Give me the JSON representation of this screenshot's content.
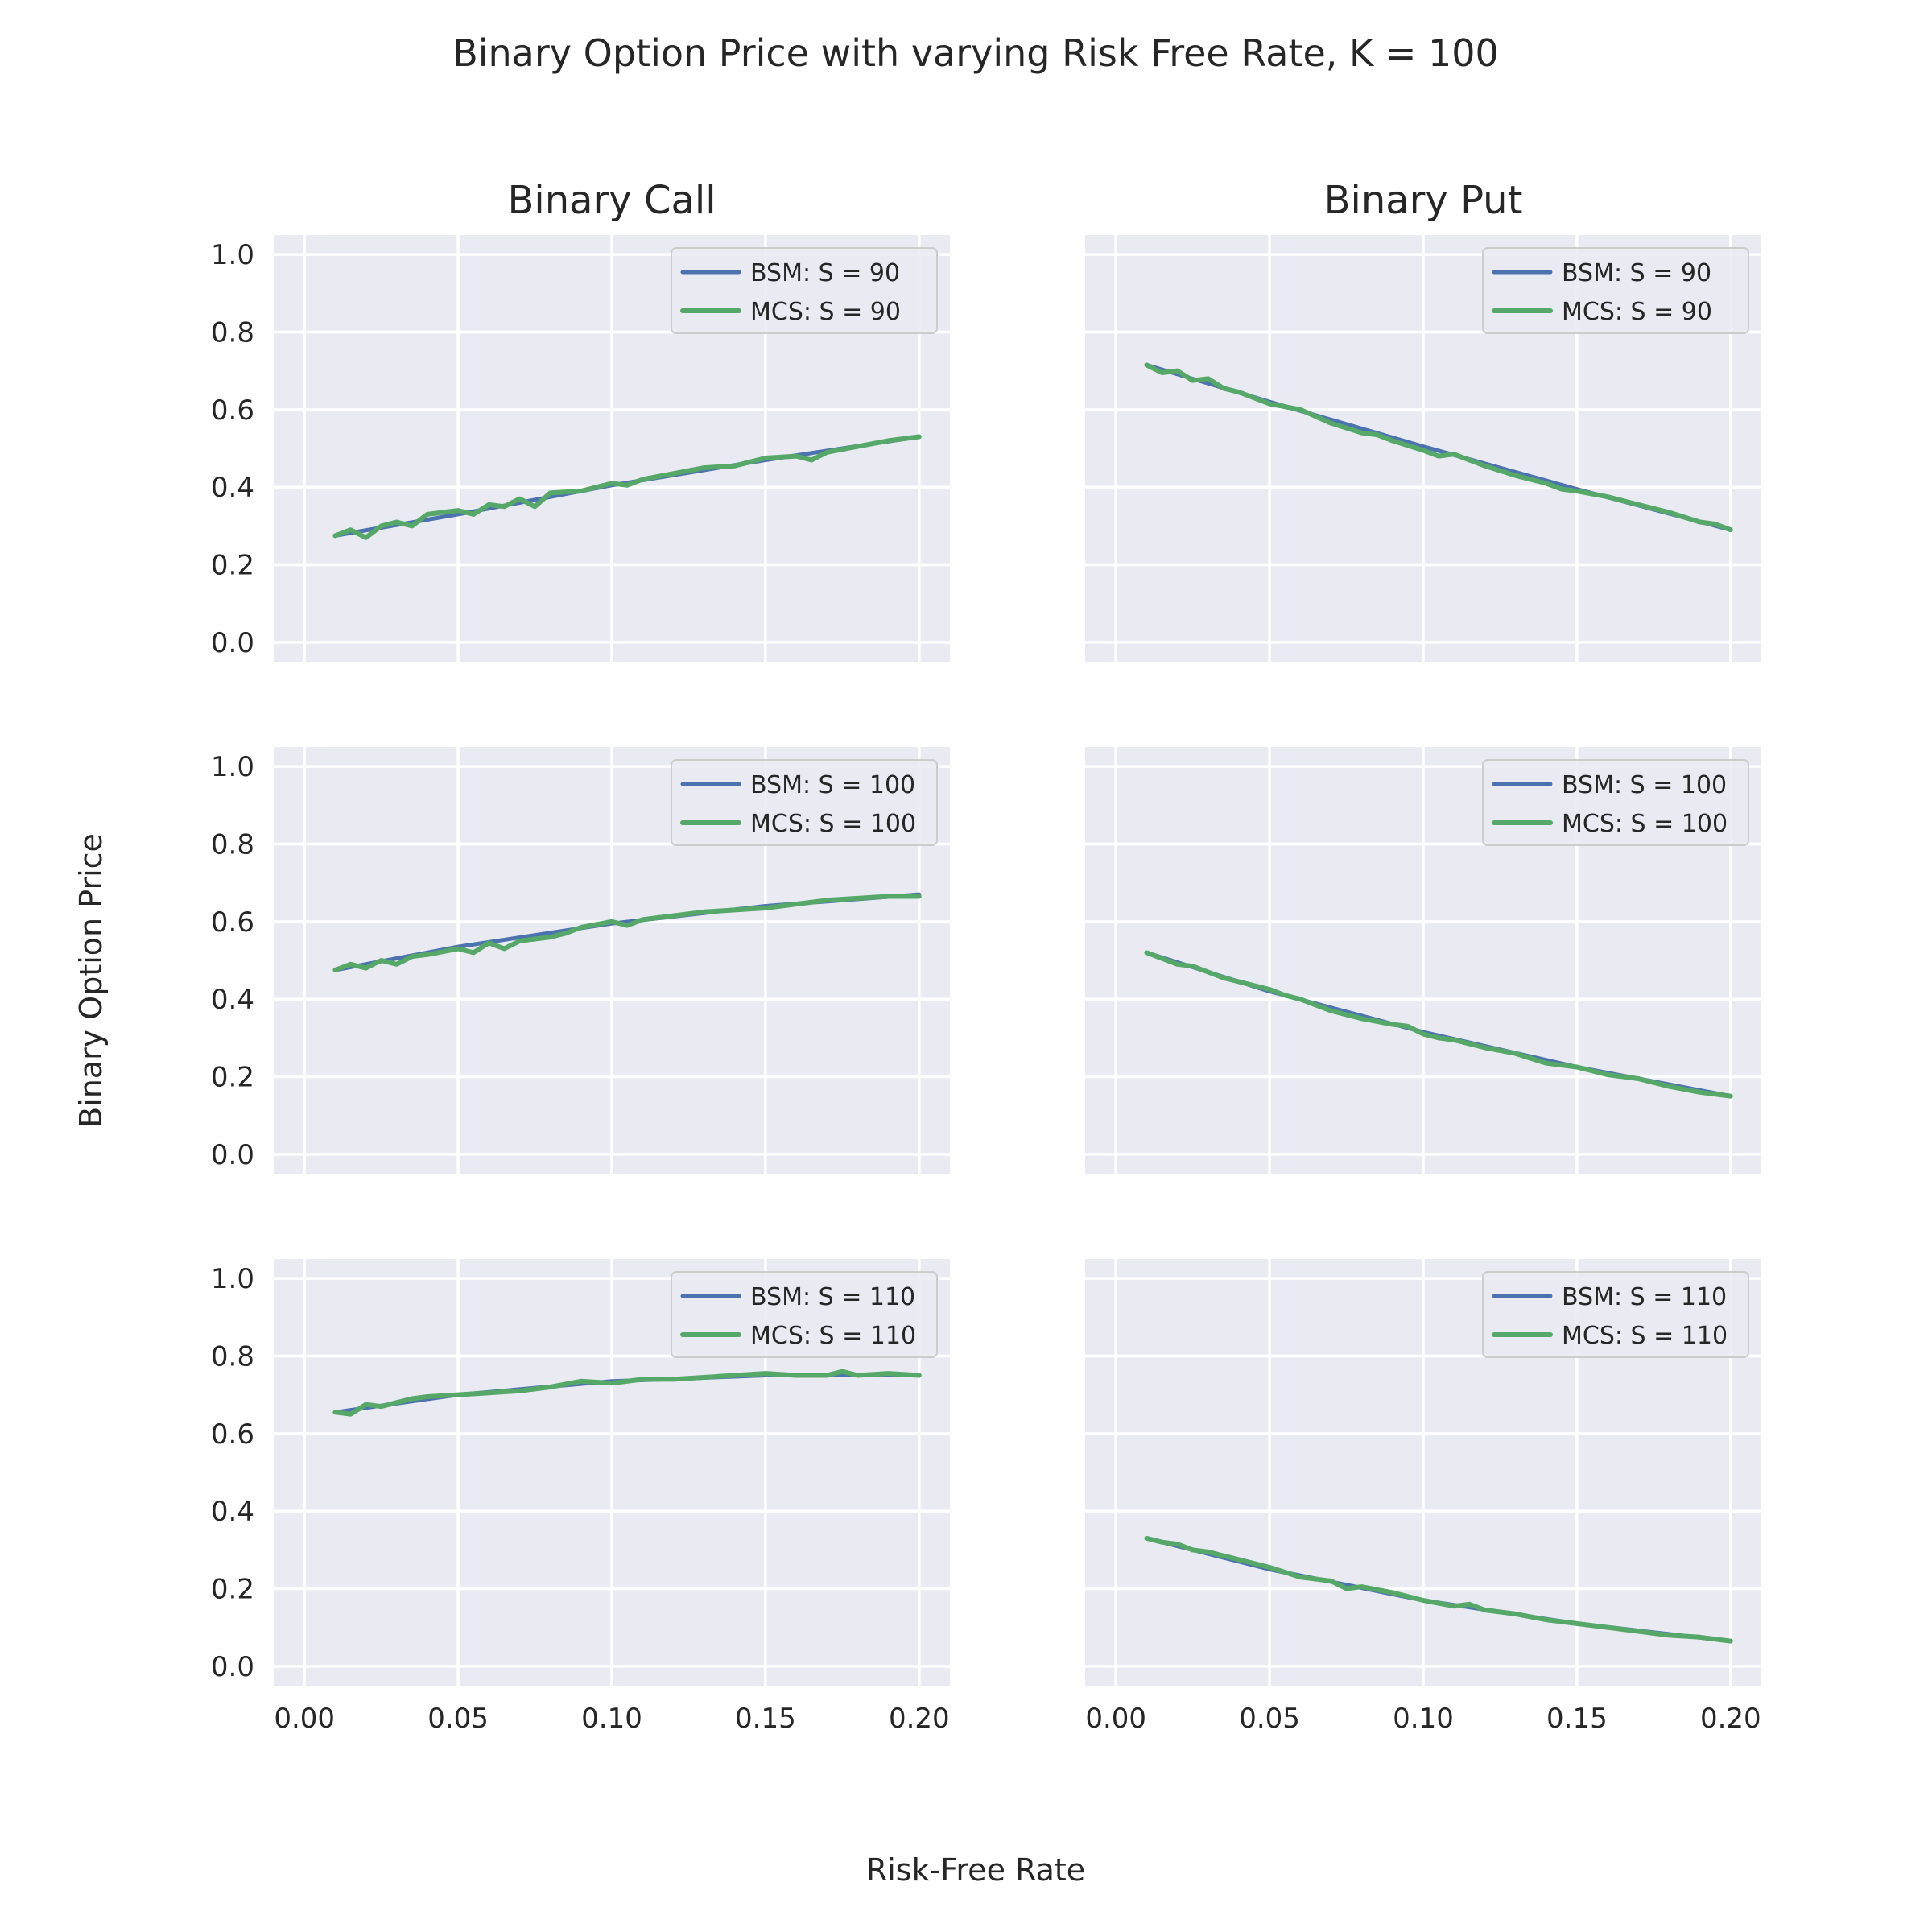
{
  "suptitle": "Binary Option Price with varying Risk Free Rate, K = 100",
  "xlabel": "Risk-Free Rate",
  "ylabel": "Binary Option Price",
  "column_titles": [
    "Binary Call",
    "Binary Put"
  ],
  "colors": {
    "bsm": "#4c72b0",
    "mcs": "#55a868",
    "face": "#eaeaf2"
  },
  "chart_data": [
    {
      "type": "line",
      "title": "Binary Call",
      "row": 0,
      "col": 0,
      "xlim": [
        -0.01,
        0.21
      ],
      "ylim": [
        -0.05,
        1.05
      ],
      "xticks": [
        "0.00",
        "0.05",
        "0.10",
        "0.15",
        "0.20"
      ],
      "yticks": [
        "0.0",
        "0.2",
        "0.4",
        "0.6",
        "0.8",
        "1.0"
      ],
      "legend": "top-right",
      "grid": true,
      "series": [
        {
          "name": "BSM: S = 90",
          "kind": "bsm",
          "x": [
            0.01,
            0.05,
            0.1,
            0.15,
            0.2
          ],
          "y": [
            0.275,
            0.33,
            0.405,
            0.47,
            0.53
          ]
        },
        {
          "name": "MCS: S = 90",
          "kind": "mcs",
          "x": [
            0.01,
            0.015,
            0.02,
            0.025,
            0.03,
            0.035,
            0.04,
            0.05,
            0.055,
            0.06,
            0.065,
            0.07,
            0.075,
            0.08,
            0.09,
            0.1,
            0.105,
            0.11,
            0.12,
            0.13,
            0.14,
            0.15,
            0.16,
            0.165,
            0.17,
            0.18,
            0.19,
            0.2
          ],
          "y": [
            0.275,
            0.29,
            0.27,
            0.3,
            0.31,
            0.3,
            0.33,
            0.34,
            0.33,
            0.355,
            0.35,
            0.37,
            0.35,
            0.385,
            0.39,
            0.41,
            0.405,
            0.42,
            0.435,
            0.45,
            0.455,
            0.475,
            0.48,
            0.47,
            0.49,
            0.505,
            0.52,
            0.53
          ]
        }
      ]
    },
    {
      "type": "line",
      "title": "Binary Put",
      "row": 0,
      "col": 1,
      "xlim": [
        -0.01,
        0.21
      ],
      "ylim": [
        -0.05,
        1.05
      ],
      "xticks": [
        "0.00",
        "0.05",
        "0.10",
        "0.15",
        "0.20"
      ],
      "yticks": [
        "0.0",
        "0.2",
        "0.4",
        "0.6",
        "0.8",
        "1.0"
      ],
      "legend": "top-right",
      "grid": true,
      "series": [
        {
          "name": "BSM: S = 90",
          "kind": "bsm",
          "x": [
            0.01,
            0.05,
            0.1,
            0.15,
            0.2
          ],
          "y": [
            0.715,
            0.62,
            0.505,
            0.395,
            0.29
          ]
        },
        {
          "name": "MCS: S = 90",
          "kind": "mcs",
          "x": [
            0.01,
            0.015,
            0.02,
            0.025,
            0.03,
            0.035,
            0.04,
            0.05,
            0.06,
            0.07,
            0.08,
            0.085,
            0.09,
            0.1,
            0.105,
            0.11,
            0.115,
            0.12,
            0.13,
            0.14,
            0.145,
            0.15,
            0.16,
            0.17,
            0.18,
            0.19,
            0.195,
            0.2
          ],
          "y": [
            0.715,
            0.695,
            0.7,
            0.675,
            0.68,
            0.655,
            0.645,
            0.615,
            0.6,
            0.565,
            0.54,
            0.535,
            0.52,
            0.495,
            0.48,
            0.485,
            0.47,
            0.455,
            0.43,
            0.41,
            0.395,
            0.39,
            0.375,
            0.355,
            0.335,
            0.31,
            0.305,
            0.29
          ]
        }
      ]
    },
    {
      "type": "line",
      "row": 1,
      "col": 0,
      "xlim": [
        -0.01,
        0.21
      ],
      "ylim": [
        -0.05,
        1.05
      ],
      "xticks": [
        "0.00",
        "0.05",
        "0.10",
        "0.15",
        "0.20"
      ],
      "yticks": [
        "0.0",
        "0.2",
        "0.4",
        "0.6",
        "0.8",
        "1.0"
      ],
      "legend": "top-right",
      "grid": true,
      "series": [
        {
          "name": "BSM: S = 100",
          "kind": "bsm",
          "x": [
            0.01,
            0.05,
            0.1,
            0.15,
            0.2
          ],
          "y": [
            0.475,
            0.535,
            0.595,
            0.64,
            0.67
          ]
        },
        {
          "name": "MCS: S = 100",
          "kind": "mcs",
          "x": [
            0.01,
            0.015,
            0.02,
            0.025,
            0.03,
            0.035,
            0.04,
            0.05,
            0.055,
            0.06,
            0.065,
            0.07,
            0.08,
            0.085,
            0.09,
            0.1,
            0.105,
            0.11,
            0.12,
            0.13,
            0.14,
            0.15,
            0.16,
            0.17,
            0.18,
            0.19,
            0.2
          ],
          "y": [
            0.475,
            0.49,
            0.48,
            0.5,
            0.49,
            0.51,
            0.515,
            0.53,
            0.52,
            0.545,
            0.53,
            0.55,
            0.56,
            0.57,
            0.585,
            0.6,
            0.59,
            0.605,
            0.615,
            0.625,
            0.63,
            0.635,
            0.645,
            0.655,
            0.66,
            0.665,
            0.665
          ]
        }
      ]
    },
    {
      "type": "line",
      "row": 1,
      "col": 1,
      "xlim": [
        -0.01,
        0.21
      ],
      "ylim": [
        -0.05,
        1.05
      ],
      "xticks": [
        "0.00",
        "0.05",
        "0.10",
        "0.15",
        "0.20"
      ],
      "yticks": [
        "0.0",
        "0.2",
        "0.4",
        "0.6",
        "0.8",
        "1.0"
      ],
      "legend": "top-right",
      "grid": true,
      "series": [
        {
          "name": "BSM: S = 100",
          "kind": "bsm",
          "x": [
            0.01,
            0.05,
            0.1,
            0.15,
            0.2
          ],
          "y": [
            0.52,
            0.42,
            0.315,
            0.225,
            0.15
          ]
        },
        {
          "name": "MCS: S = 100",
          "kind": "mcs",
          "x": [
            0.01,
            0.015,
            0.02,
            0.025,
            0.03,
            0.035,
            0.04,
            0.05,
            0.055,
            0.06,
            0.065,
            0.07,
            0.08,
            0.09,
            0.095,
            0.1,
            0.105,
            0.11,
            0.12,
            0.13,
            0.14,
            0.15,
            0.16,
            0.165,
            0.17,
            0.18,
            0.19,
            0.2
          ],
          "y": [
            0.52,
            0.505,
            0.49,
            0.485,
            0.47,
            0.455,
            0.445,
            0.425,
            0.41,
            0.4,
            0.385,
            0.37,
            0.35,
            0.335,
            0.33,
            0.31,
            0.3,
            0.295,
            0.275,
            0.26,
            0.235,
            0.225,
            0.205,
            0.2,
            0.195,
            0.175,
            0.16,
            0.15
          ]
        }
      ]
    },
    {
      "type": "line",
      "row": 2,
      "col": 0,
      "xlim": [
        -0.01,
        0.21
      ],
      "ylim": [
        -0.05,
        1.05
      ],
      "xticks": [
        "0.00",
        "0.05",
        "0.10",
        "0.15",
        "0.20"
      ],
      "yticks": [
        "0.0",
        "0.2",
        "0.4",
        "0.6",
        "0.8",
        "1.0"
      ],
      "legend": "top-right",
      "grid": true,
      "series": [
        {
          "name": "BSM: S = 110",
          "kind": "bsm",
          "x": [
            0.01,
            0.05,
            0.1,
            0.15,
            0.2
          ],
          "y": [
            0.655,
            0.7,
            0.735,
            0.75,
            0.75
          ]
        },
        {
          "name": "MCS: S = 110",
          "kind": "mcs",
          "x": [
            0.01,
            0.015,
            0.02,
            0.025,
            0.03,
            0.035,
            0.04,
            0.05,
            0.06,
            0.07,
            0.08,
            0.09,
            0.1,
            0.11,
            0.12,
            0.13,
            0.14,
            0.15,
            0.16,
            0.17,
            0.175,
            0.18,
            0.19,
            0.2
          ],
          "y": [
            0.655,
            0.65,
            0.675,
            0.67,
            0.68,
            0.69,
            0.695,
            0.7,
            0.705,
            0.71,
            0.72,
            0.735,
            0.73,
            0.74,
            0.74,
            0.745,
            0.75,
            0.755,
            0.75,
            0.75,
            0.76,
            0.75,
            0.755,
            0.75
          ]
        }
      ]
    },
    {
      "type": "line",
      "row": 2,
      "col": 1,
      "xlim": [
        -0.01,
        0.21
      ],
      "ylim": [
        -0.05,
        1.05
      ],
      "xticks": [
        "0.00",
        "0.05",
        "0.10",
        "0.15",
        "0.20"
      ],
      "yticks": [
        "0.0",
        "0.2",
        "0.4",
        "0.6",
        "0.8",
        "1.0"
      ],
      "legend": "top-right",
      "grid": true,
      "series": [
        {
          "name": "BSM: S = 110",
          "kind": "bsm",
          "x": [
            0.01,
            0.05,
            0.1,
            0.15,
            0.2
          ],
          "y": [
            0.33,
            0.25,
            0.17,
            0.11,
            0.065
          ]
        },
        {
          "name": "MCS: S = 110",
          "kind": "mcs",
          "x": [
            0.01,
            0.015,
            0.02,
            0.025,
            0.03,
            0.035,
            0.04,
            0.05,
            0.06,
            0.07,
            0.075,
            0.08,
            0.09,
            0.1,
            0.11,
            0.115,
            0.12,
            0.13,
            0.14,
            0.15,
            0.16,
            0.17,
            0.18,
            0.19,
            0.2
          ],
          "y": [
            0.33,
            0.32,
            0.315,
            0.3,
            0.295,
            0.285,
            0.275,
            0.255,
            0.23,
            0.22,
            0.2,
            0.205,
            0.19,
            0.17,
            0.155,
            0.16,
            0.145,
            0.135,
            0.12,
            0.11,
            0.1,
            0.09,
            0.08,
            0.075,
            0.065
          ]
        }
      ]
    }
  ]
}
